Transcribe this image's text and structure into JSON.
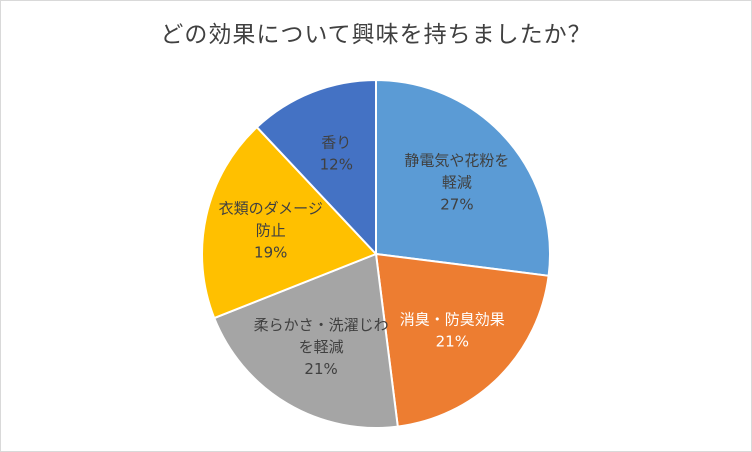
{
  "chart_data": {
    "type": "pie",
    "title": "どの効果について興味を持ちましたか？",
    "slices": [
      {
        "label_lines": [
          "静電気や花粉を",
          "軽減"
        ],
        "value": 27,
        "percent_label": "27%",
        "color": "#5b9bd5",
        "text_color": "#404040"
      },
      {
        "label_lines": [
          "消臭・防臭効果"
        ],
        "value": 21,
        "percent_label": "21%",
        "color": "#ed7d31",
        "text_color": "#ffffff"
      },
      {
        "label_lines": [
          "柔らかさ・洗濯じわ",
          "を軽減"
        ],
        "value": 21,
        "percent_label": "21%",
        "color": "#a5a5a5",
        "text_color": "#404040"
      },
      {
        "label_lines": [
          "衣類のダメージ",
          "防止"
        ],
        "value": 19,
        "percent_label": "19%",
        "color": "#ffc000",
        "text_color": "#404040"
      },
      {
        "label_lines": [
          "香り"
        ],
        "value": 12,
        "percent_label": "12%",
        "color": "#4472c4",
        "text_color": "#404040"
      }
    ],
    "legend": "none",
    "start": "12 o'clock, clockwise"
  }
}
